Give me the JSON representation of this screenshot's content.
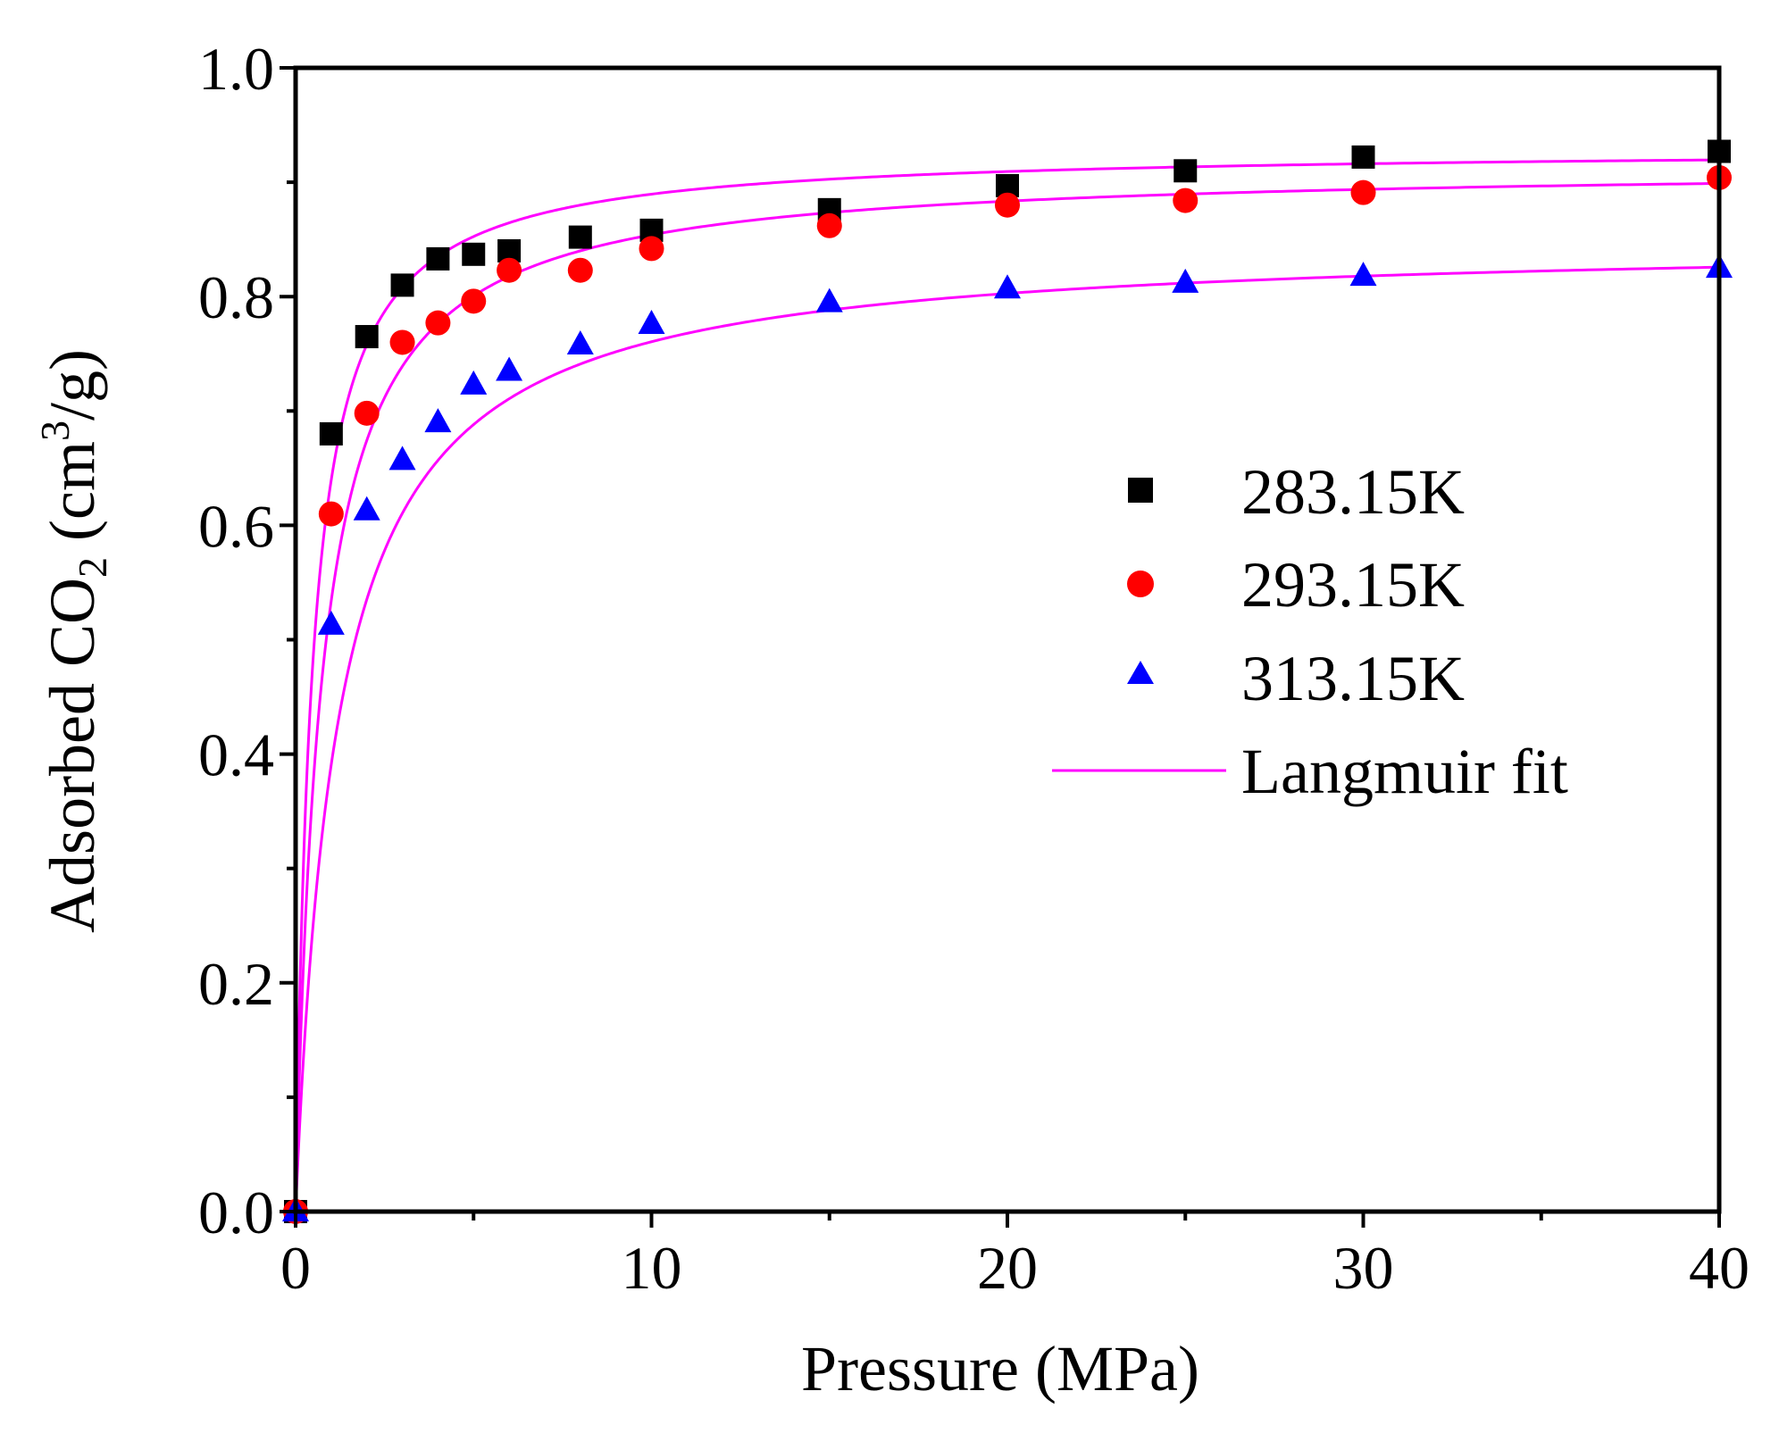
{
  "chart_data": {
    "type": "scatter",
    "xlabel": "Pressure (MPa)",
    "ylabel": {
      "prefix": "Adsorbed CO",
      "subscript": "2",
      "middle": " (cm",
      "superscript": "3",
      "suffix": "/g)"
    },
    "xlim": [
      0,
      40
    ],
    "ylim": [
      0,
      1.0
    ],
    "xticks": [
      0,
      10,
      20,
      30,
      40
    ],
    "xtick_labels": [
      "0",
      "10",
      "20",
      "30",
      "40"
    ],
    "xminor": [
      5,
      15,
      25,
      35
    ],
    "yticks": [
      0,
      0.2,
      0.4,
      0.6,
      0.8,
      1.0
    ],
    "ytick_labels": [
      "0.0",
      "0.2",
      "0.4",
      "0.6",
      "0.8",
      "1.0"
    ],
    "yminor": [
      0.1,
      0.3,
      0.5,
      0.7,
      0.9
    ],
    "grid": false,
    "legend_position": "right-center",
    "series": [
      {
        "name": "283.15K",
        "marker": "square",
        "color": "#000000",
        "x": [
          0,
          1,
          2,
          3,
          4,
          5,
          6,
          8,
          10,
          15,
          20,
          25,
          30,
          40
        ],
        "y": [
          0.0,
          0.68,
          0.765,
          0.81,
          0.833,
          0.837,
          0.84,
          0.852,
          0.858,
          0.876,
          0.897,
          0.91,
          0.922,
          0.927
        ],
        "fit": {
          "qm": 0.93,
          "b": 2.2
        }
      },
      {
        "name": "293.15K",
        "marker": "circle",
        "color": "#ff0000",
        "x": [
          0,
          1,
          2,
          3,
          4,
          5,
          6,
          8,
          10,
          15,
          20,
          25,
          30,
          40
        ],
        "y": [
          0.0,
          0.61,
          0.698,
          0.76,
          0.777,
          0.796,
          0.823,
          0.823,
          0.842,
          0.862,
          0.88,
          0.884,
          0.891,
          0.904
        ],
        "fit": {
          "qm": 0.915,
          "b": 1.4
        }
      },
      {
        "name": "313.15K",
        "marker": "triangle",
        "color": "#0000ff",
        "x": [
          0,
          1,
          2,
          3,
          4,
          5,
          6,
          8,
          10,
          15,
          20,
          25,
          30,
          40
        ],
        "y": [
          0.0,
          0.513,
          0.613,
          0.657,
          0.69,
          0.723,
          0.735,
          0.758,
          0.776,
          0.795,
          0.807,
          0.812,
          0.818,
          0.825
        ],
        "fit": {
          "qm": 0.85,
          "b": 0.85
        }
      }
    ],
    "fit_line": {
      "name": "Langmuir fit",
      "color": "#ff00ff"
    }
  }
}
